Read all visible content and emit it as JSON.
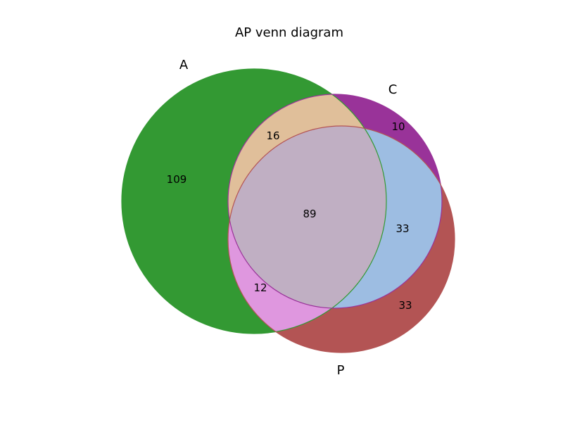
{
  "title": "AP venn diagram",
  "sets": [
    {
      "key": "A",
      "label": "A",
      "color": "#339933"
    },
    {
      "key": "C",
      "label": "C",
      "color": "#993399"
    },
    {
      "key": "P",
      "label": "P",
      "color": "#b35454"
    }
  ],
  "regions": {
    "A_only": "109",
    "C_only": "10",
    "P_only": "33",
    "AC_only": "16",
    "AP_only": "12",
    "CP_only": "33",
    "ACP": "89"
  },
  "colors": {
    "A_only": "#339933",
    "C_only": "#993399",
    "P_only": "#b35454",
    "AC_only": "#e0bf9a",
    "AP_only": "#df97df",
    "CP_only": "#9dbde2",
    "ACP": "#c0afc3"
  },
  "chart_data": {
    "type": "venn",
    "title": "AP venn diagram",
    "sets": [
      "A",
      "C",
      "P"
    ],
    "subsets": {
      "A": 109,
      "C": 10,
      "P": 33,
      "A&C": 16,
      "A&P": 12,
      "C&P": 33,
      "A&C&P": 89
    }
  }
}
